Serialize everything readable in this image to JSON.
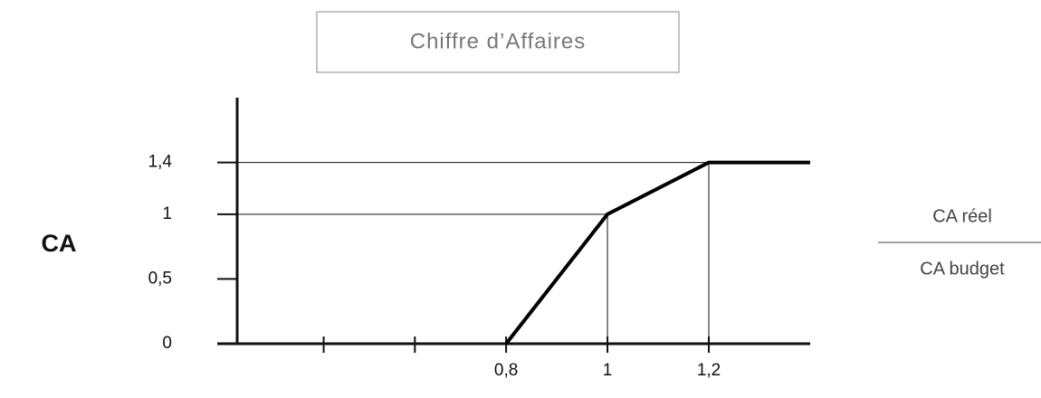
{
  "chart_data": {
    "type": "line",
    "title": "Chiffre d’Affaires",
    "ylabel": "CA",
    "xlabel": {
      "numerator": "CA réel",
      "denominator": "CA budget"
    },
    "series": [
      {
        "color": "#000000",
        "x": [
          0.8,
          1,
          1.2,
          1.4
        ],
        "values": [
          0,
          1,
          1.4,
          1.4
        ]
      }
    ],
    "xlim": [
      0.23,
      1.4
    ],
    "ylim": [
      0,
      1.9
    ],
    "xticks": [
      {
        "value": 0.44,
        "label": null
      },
      {
        "value": 0.62,
        "label": null
      },
      {
        "value": 0.8,
        "label": "0,8"
      },
      {
        "value": 1,
        "label": "1"
      },
      {
        "value": 1.2,
        "label": "1,2"
      }
    ],
    "yticks": [
      0,
      {
        "value": 0.5,
        "label": "0,5"
      },
      1,
      {
        "value": 1.4,
        "label": "1,4"
      }
    ]
  }
}
